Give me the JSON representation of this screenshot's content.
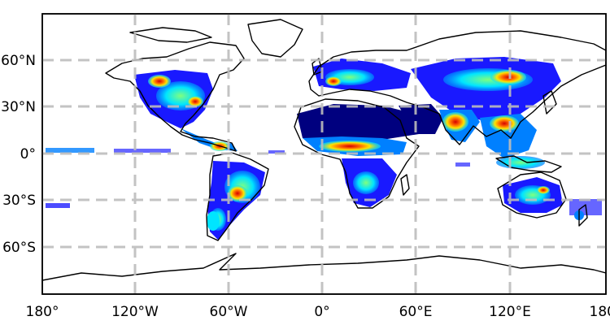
{
  "map": {
    "projection": "equirectangular",
    "extent": {
      "lon": [
        -180,
        180
      ],
      "lat": [
        -90,
        90
      ]
    },
    "gridlines": {
      "style": "dashed",
      "color": "#bdbdbd"
    },
    "colormap": [
      "#00007f",
      "#0000ff",
      "#0080ff",
      "#00e5ff",
      "#7fff7f",
      "#ffe500",
      "#ff6a00",
      "#d40000",
      "#7f0000"
    ],
    "x_ticks": [
      {
        "lon": -180,
        "label": "180°"
      },
      {
        "lon": -120,
        "label": "120°W"
      },
      {
        "lon": -60,
        "label": "60°W"
      },
      {
        "lon": 0,
        "label": "0°"
      },
      {
        "lon": 60,
        "label": "60°E"
      },
      {
        "lon": 120,
        "label": "120°E"
      },
      {
        "lon": 180,
        "label": "180°"
      }
    ],
    "y_ticks": [
      {
        "lat": 60,
        "label": "60°N"
      },
      {
        "lat": 30,
        "label": "30°N"
      },
      {
        "lat": 0,
        "label": "0°"
      },
      {
        "lat": -30,
        "label": "30°S"
      },
      {
        "lat": -60,
        "label": "60°S"
      }
    ]
  }
}
